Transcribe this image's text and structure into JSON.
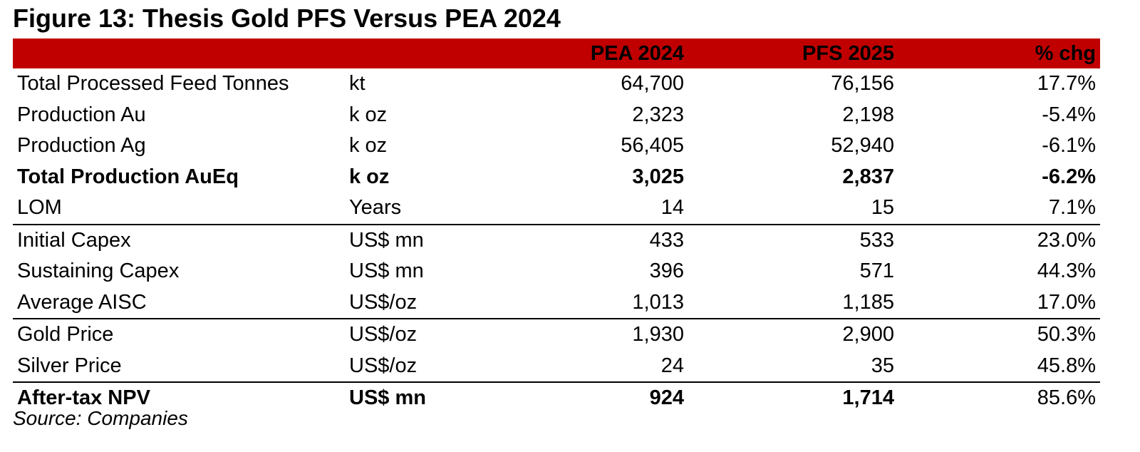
{
  "title": "Figure 13: Thesis Gold PFS Versus PEA 2024",
  "colors": {
    "header_background": "#c00000",
    "text": "#000000",
    "rule": "#000000"
  },
  "table": {
    "headers": {
      "label": "",
      "unit": "",
      "pea": "PEA 2024",
      "pfs": "PFS 2025",
      "chg": "% chg"
    },
    "rows": [
      {
        "label": "Total Processed Feed Tonnes",
        "unit": "kt",
        "pea": "64,700",
        "pfs": "76,156",
        "chg": "17.7%"
      },
      {
        "label": "Production Au",
        "unit": "k oz",
        "pea": "2,323",
        "pfs": "2,198",
        "chg": "-5.4%"
      },
      {
        "label": "Production Ag",
        "unit": "k oz",
        "pea": "56,405",
        "pfs": "52,940",
        "chg": "-6.1%"
      },
      {
        "label": "Total Production AuEq",
        "unit": "k oz",
        "pea": "3,025",
        "pfs": "2,837",
        "chg": "-6.2%"
      },
      {
        "label": "LOM",
        "unit": "Years",
        "pea": "14",
        "pfs": "15",
        "chg": "7.1%"
      },
      {
        "label": "Initial Capex",
        "unit": "US$ mn",
        "pea": "433",
        "pfs": "533",
        "chg": "23.0%"
      },
      {
        "label": "Sustaining Capex",
        "unit": "US$ mn",
        "pea": "396",
        "pfs": "571",
        "chg": "44.3%"
      },
      {
        "label": "Average AISC",
        "unit": "US$/oz",
        "pea": "1,013",
        "pfs": "1,185",
        "chg": "17.0%"
      },
      {
        "label": "Gold Price",
        "unit": "US$/oz",
        "pea": "1,930",
        "pfs": "2,900",
        "chg": "50.3%"
      },
      {
        "label": "Silver Price",
        "unit": "US$/oz",
        "pea": "24",
        "pfs": "35",
        "chg": "45.8%"
      },
      {
        "label": "After-tax NPV",
        "unit": "US$ mn",
        "pea": "924",
        "pfs": "1,714",
        "chg": "85.6%"
      }
    ]
  },
  "source": "Source: Companies"
}
